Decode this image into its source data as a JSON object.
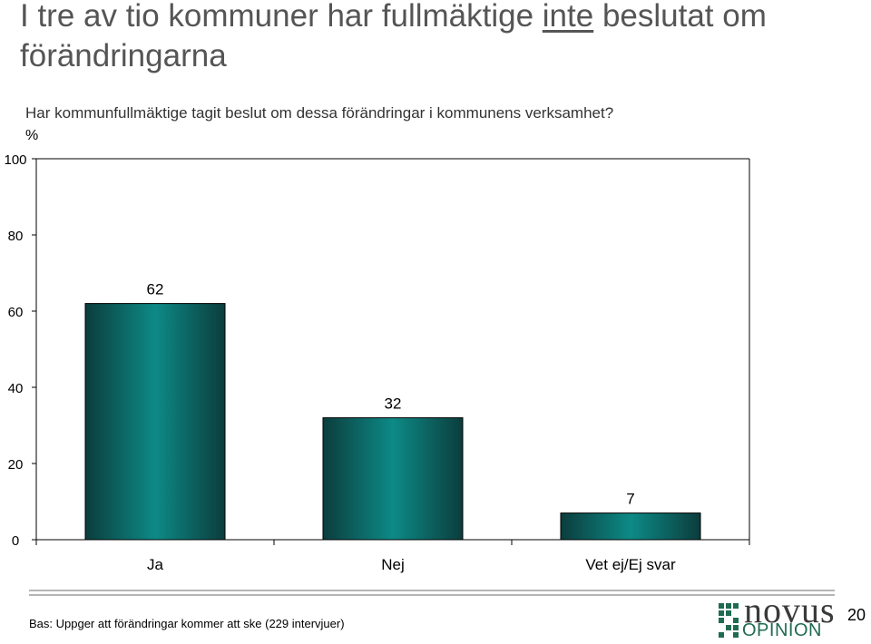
{
  "slide": {
    "title_part1": "I tre av tio kommuner har fullmäktige ",
    "title_emph": "inte",
    "title_part2": " beslutat om förändringarna",
    "page_number": "20"
  },
  "footer": {
    "base_note": "Bas: Uppger att förändringar kommer att ske (229 intervjuer)",
    "logo_top": "novus",
    "logo_bottom": "OPINION"
  },
  "colors": {
    "bar_dark": "#0b3d3d",
    "bar_mid": "#0d8a86",
    "logo_green": "#1f6b52"
  },
  "chart_data": {
    "type": "bar",
    "title": "Har kommunfullmäktige tagit beslut om dessa förändringar i kommunens verksamhet?",
    "ylabel": "%",
    "categories": [
      "Ja",
      "Nej",
      "Vet ej/Ej svar"
    ],
    "values": [
      62,
      32,
      7
    ],
    "value_labels": [
      "62",
      "32",
      "7"
    ],
    "ylim": [
      0,
      100
    ],
    "yticks": [
      0,
      20,
      40,
      60,
      80,
      100
    ],
    "ytick_labels": [
      "0",
      "20",
      "40",
      "60",
      "80",
      "100"
    ],
    "grid": false,
    "legend": "none"
  }
}
